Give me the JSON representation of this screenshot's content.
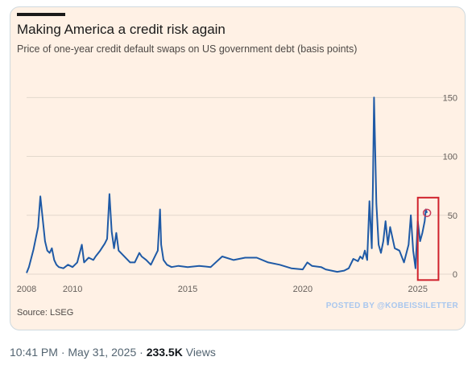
{
  "post": {
    "time": "10:41 PM",
    "sep1": " · ",
    "date": "May 31, 2025",
    "sep2": " · ",
    "views": "233.5K",
    "views_label": " Views"
  },
  "figure": {
    "source": "Source: LSEG",
    "watermark": "POSTED BY @KOBEISSILETTER"
  },
  "colors": {
    "line": "#1f5aa6",
    "highlight_box": "#d0212c",
    "marker": "#c83c5a",
    "grid": "#e3d8cd",
    "background": "#fff1e5"
  },
  "chart_data": {
    "type": "line",
    "title": "Making America a credit risk again",
    "subtitle": "Price of one-year credit default swaps on US government debt (basis points)",
    "xlabel": "",
    "ylabel": "",
    "xlim": [
      2008,
      2025.5
    ],
    "ylim": [
      0,
      155
    ],
    "y_ticks": [
      0,
      50,
      100,
      150
    ],
    "x_ticks": [
      2008,
      2010,
      2015,
      2020,
      2025
    ],
    "y_axis_side": "right",
    "grid": "horizontal",
    "annotation": "highlight box around latest values (2025)",
    "series": [
      {
        "x": [
          2008.0,
          2008.1,
          2008.3,
          2008.5,
          2008.6,
          2008.8,
          2008.9,
          2009.0,
          2009.1,
          2009.2,
          2009.3,
          2009.4,
          2009.6,
          2009.8,
          2010.0,
          2010.2,
          2010.4,
          2010.5,
          2010.7,
          2010.9,
          2011.0,
          2011.2,
          2011.4,
          2011.5,
          2011.6,
          2011.7,
          2011.8,
          2011.9,
          2012.0,
          2012.2,
          2012.4,
          2012.5,
          2012.7,
          2012.9,
          2013.0,
          2013.2,
          2013.4,
          2013.6,
          2013.7,
          2013.8,
          2013.85,
          2013.95,
          2014.1,
          2014.3,
          2014.6,
          2015.0,
          2015.5,
          2016.0,
          2016.5,
          2017.0,
          2017.5,
          2018.0,
          2018.5,
          2019.0,
          2019.5,
          2020.0,
          2020.2,
          2020.4,
          2020.8,
          2021.0,
          2021.5,
          2021.8,
          2022.0,
          2022.2,
          2022.4,
          2022.5,
          2022.6,
          2022.7,
          2022.8,
          2022.9,
          2023.0,
          2023.05,
          2023.1,
          2023.2,
          2023.3,
          2023.4,
          2023.5,
          2023.6,
          2023.7,
          2023.8,
          2024.0,
          2024.2,
          2024.4,
          2024.6,
          2024.7,
          2024.8,
          2024.9,
          2025.0,
          2025.1,
          2025.2,
          2025.3,
          2025.35,
          2025.4
        ],
        "values": [
          1,
          6,
          21,
          40,
          66,
          28,
          20,
          18,
          22,
          12,
          8,
          6,
          5,
          8,
          6,
          10,
          25,
          10,
          14,
          12,
          15,
          20,
          26,
          30,
          68,
          36,
          22,
          35,
          20,
          16,
          12,
          10,
          10,
          18,
          15,
          12,
          8,
          16,
          20,
          55,
          25,
          12,
          8,
          6,
          7,
          6,
          7,
          6,
          15,
          12,
          14,
          14,
          10,
          8,
          5,
          4,
          10,
          7,
          6,
          4,
          2,
          3,
          5,
          13,
          11,
          15,
          13,
          20,
          12,
          62,
          22,
          75,
          150,
          60,
          25,
          18,
          28,
          45,
          25,
          40,
          22,
          20,
          10,
          25,
          50,
          20,
          5,
          45,
          28,
          35,
          45,
          55,
          52
        ]
      }
    ],
    "marker_point": {
      "x": 2025.4,
      "y": 52
    }
  }
}
